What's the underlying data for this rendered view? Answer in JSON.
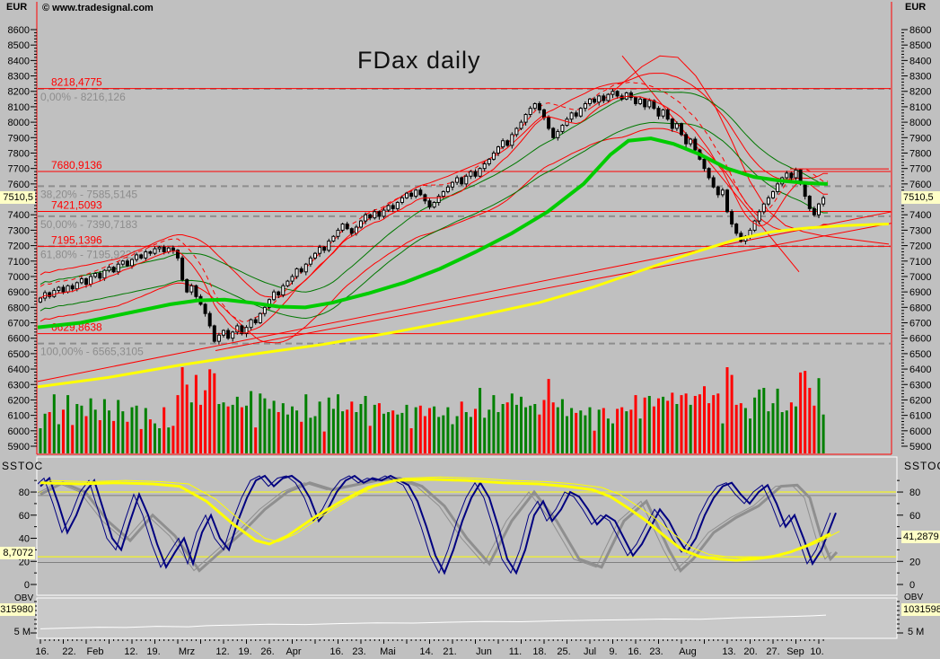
{
  "app": {
    "watermark": "© www.tradesignal.com",
    "title": "FDax daily"
  },
  "price_axis": {
    "unit": "EUR",
    "tick_min": 5900,
    "tick_max": 8600,
    "tick_step": 100,
    "current_price_box": "7510,5"
  },
  "levels": [
    {
      "label": "8218,4775",
      "value": 8218.4775
    },
    {
      "label": "7680,9136",
      "value": 7680.9136
    },
    {
      "label": "7421,5093",
      "value": 7421.5093
    },
    {
      "label": "7195,1396",
      "value": 7195.1396
    },
    {
      "label": "6629,8638",
      "value": 6629.8638
    }
  ],
  "fib_levels": [
    {
      "label": "0,00% - 8216,126",
      "value": 8216.126
    },
    {
      "label": "38,20% - 7585,5145",
      "value": 7585.5145
    },
    {
      "label": "50,00% - 7390,7183",
      "value": 7390.7183
    },
    {
      "label": "61,80% - 7195,9221",
      "value": 7195.9221
    },
    {
      "label": "100,00% - 6565,3105",
      "value": 6565.3105
    }
  ],
  "dates": [
    {
      "label": "16.",
      "x": 47
    },
    {
      "label": "22.",
      "x": 77
    },
    {
      "label": "Feb",
      "x": 106
    },
    {
      "label": "12.",
      "x": 146
    },
    {
      "label": "19.",
      "x": 171
    },
    {
      "label": "Mrz",
      "x": 208
    },
    {
      "label": "12.",
      "x": 248
    },
    {
      "label": "19.",
      "x": 273
    },
    {
      "label": "26.",
      "x": 298
    },
    {
      "label": "Apr",
      "x": 327
    },
    {
      "label": "16.",
      "x": 375
    },
    {
      "label": "23.",
      "x": 400
    },
    {
      "label": "Mai",
      "x": 432
    },
    {
      "label": "14.",
      "x": 475
    },
    {
      "label": "21.",
      "x": 501
    },
    {
      "label": "Jun",
      "x": 539
    },
    {
      "label": "11.",
      "x": 574
    },
    {
      "label": "18.",
      "x": 601
    },
    {
      "label": "25.",
      "x": 628
    },
    {
      "label": "Jul",
      "x": 657
    },
    {
      "label": "9.",
      "x": 683
    },
    {
      "label": "16.",
      "x": 707
    },
    {
      "label": "23.",
      "x": 731
    },
    {
      "label": "Aug",
      "x": 766
    },
    {
      "label": "13.",
      "x": 812
    },
    {
      "label": "20.",
      "x": 836
    },
    {
      "label": "27.",
      "x": 861
    },
    {
      "label": "Sep",
      "x": 886
    },
    {
      "label": "10.",
      "x": 910
    }
  ],
  "sstoc": {
    "title": "SSTOC",
    "ticks": [
      80,
      60,
      40,
      20,
      0
    ],
    "left_box": "8,7072",
    "right_box": "41,2879",
    "ref_yellow": [
      80,
      24
    ],
    "ref_gray": [
      77,
      19
    ]
  },
  "obv": {
    "title": "OBV",
    "left_box": "315980",
    "right_box": "1031598",
    "tick_label": "5 M",
    "line": [
      [
        45,
        5.9
      ],
      [
        80,
        6.1
      ],
      [
        110,
        6.25
      ],
      [
        140,
        6.2
      ],
      [
        175,
        6.45
      ],
      [
        210,
        6.35
      ],
      [
        230,
        6.6
      ],
      [
        265,
        6.75
      ],
      [
        300,
        6.9
      ],
      [
        340,
        6.85
      ],
      [
        380,
        7.05
      ],
      [
        420,
        7.2
      ],
      [
        460,
        7.15
      ],
      [
        500,
        7.35
      ],
      [
        540,
        7.5
      ],
      [
        580,
        7.45
      ],
      [
        620,
        7.65
      ],
      [
        660,
        7.8
      ],
      [
        700,
        7.9
      ],
      [
        740,
        8.05
      ],
      [
        780,
        8.0
      ],
      [
        820,
        8.3
      ],
      [
        850,
        8.45
      ],
      [
        880,
        8.6
      ],
      [
        905,
        8.75
      ],
      [
        920,
        8.9
      ]
    ]
  },
  "colors": {
    "background": "#c0c0c0",
    "pane_border_red": "#ff0000",
    "level_red": "#ff0000",
    "fib_gray": "#8d8d8d",
    "ma_green": "#00cc00",
    "ma_yellow": "#ffff00",
    "band_darkgreen": "#007800",
    "volume_up": "#008000",
    "volume_down": "#ff0000",
    "stoch_navy": "#000080",
    "stoch_gray": "#8f8f8f",
    "obv_white": "#ffffff",
    "value_box": "#ffffc6"
  },
  "chart_data": {
    "type": "candlestick",
    "symbol": "FDax",
    "interval": "daily",
    "ylim": [
      5900,
      8600
    ],
    "x_range_days": 172,
    "closes": [
      6860,
      6895,
      6870,
      6910,
      6930,
      6900,
      6940,
      6920,
      6960,
      6985,
      6950,
      7000,
      7020,
      6990,
      7040,
      7060,
      7030,
      7080,
      7100,
      7070,
      7110,
      7140,
      7120,
      7160,
      7150,
      7180,
      7190,
      7160,
      7185,
      7170,
      7120,
      6980,
      6900,
      6940,
      6870,
      6820,
      6760,
      6680,
      6580,
      6620,
      6650,
      6600,
      6640,
      6680,
      6630,
      6670,
      6720,
      6700,
      6760,
      6800,
      6850,
      6900,
      6880,
      6940,
      6970,
      7000,
      7050,
      7030,
      7080,
      7120,
      7150,
      7190,
      7170,
      7230,
      7260,
      7300,
      7340,
      7310,
      7280,
      7320,
      7360,
      7400,
      7380,
      7420,
      7390,
      7430,
      7460,
      7440,
      7480,
      7510,
      7540,
      7520,
      7560,
      7530,
      7490,
      7450,
      7480,
      7520,
      7550,
      7580,
      7610,
      7640,
      7600,
      7650,
      7680,
      7650,
      7700,
      7730,
      7760,
      7800,
      7840,
      7880,
      7850,
      7920,
      7960,
      8000,
      8050,
      8090,
      8120,
      8080,
      8030,
      7960,
      7900,
      7940,
      7980,
      8020,
      8060,
      8040,
      8090,
      8120,
      8150,
      8130,
      8170,
      8140,
      8180,
      8200,
      8170,
      8150,
      8190,
      8160,
      8120,
      8150,
      8100,
      8140,
      8090,
      8040,
      8080,
      8020,
      7960,
      7990,
      7920,
      7860,
      7890,
      7820,
      7760,
      7700,
      7640,
      7580,
      7530,
      7560,
      7420,
      7340,
      7280,
      7230,
      7260,
      7300,
      7360,
      7420,
      7470,
      7510,
      7550,
      7600,
      7640,
      7670,
      7640,
      7690,
      7600,
      7520,
      7440,
      7400,
      7470,
      7510
    ],
    "overlays": {
      "green_ma": [
        [
          42,
          6670
        ],
        [
          90,
          6700
        ],
        [
          140,
          6760
        ],
        [
          190,
          6820
        ],
        [
          220,
          6845
        ],
        [
          250,
          6850
        ],
        [
          280,
          6830
        ],
        [
          310,
          6805
        ],
        [
          340,
          6800
        ],
        [
          370,
          6830
        ],
        [
          410,
          6890
        ],
        [
          450,
          6960
        ],
        [
          490,
          7050
        ],
        [
          530,
          7160
        ],
        [
          570,
          7280
        ],
        [
          610,
          7420
        ],
        [
          650,
          7600
        ],
        [
          680,
          7790
        ],
        [
          700,
          7880
        ],
        [
          725,
          7895
        ],
        [
          750,
          7860
        ],
        [
          780,
          7790
        ],
        [
          810,
          7700
        ],
        [
          840,
          7645
        ],
        [
          870,
          7620
        ],
        [
          900,
          7605
        ],
        [
          922,
          7600
        ]
      ],
      "yellow_ma": [
        [
          42,
          6285
        ],
        [
          120,
          6345
        ],
        [
          200,
          6425
        ],
        [
          280,
          6495
        ],
        [
          360,
          6560
        ],
        [
          440,
          6640
        ],
        [
          520,
          6730
        ],
        [
          600,
          6830
        ],
        [
          660,
          6930
        ],
        [
          720,
          7050
        ],
        [
          770,
          7150
        ],
        [
          820,
          7240
        ],
        [
          860,
          7290
        ],
        [
          900,
          7315
        ],
        [
          940,
          7330
        ],
        [
          990,
          7340
        ]
      ],
      "trendline1": [
        [
          42,
          6320
        ],
        [
          1002,
          7430
        ]
      ],
      "trendline2": [
        [
          240,
          6520
        ],
        [
          1002,
          7355
        ]
      ],
      "downline": [
        [
          693,
          8430
        ],
        [
          890,
          7030
        ]
      ],
      "spike": [
        [
          655,
          8080
        ],
        [
          675,
          8160
        ],
        [
          695,
          8260
        ],
        [
          715,
          8360
        ],
        [
          735,
          8430
        ],
        [
          755,
          8420
        ],
        [
          775,
          8300
        ],
        [
          795,
          8120
        ],
        [
          815,
          7880
        ],
        [
          835,
          7620
        ],
        [
          855,
          7430
        ],
        [
          875,
          7330
        ],
        [
          895,
          7290
        ],
        [
          915,
          7265
        ],
        [
          935,
          7250
        ],
        [
          990,
          7210
        ]
      ],
      "red_flat": [
        [
          880,
          7697
        ],
        [
          990,
          7697
        ]
      ]
    },
    "sstoc_lines": {
      "fast_navy": [
        [
          45,
          85
        ],
        [
          55,
          92
        ],
        [
          65,
          70
        ],
        [
          75,
          45
        ],
        [
          85,
          60
        ],
        [
          95,
          80
        ],
        [
          105,
          90
        ],
        [
          115,
          65
        ],
        [
          125,
          40
        ],
        [
          135,
          30
        ],
        [
          145,
          55
        ],
        [
          155,
          78
        ],
        [
          165,
          60
        ],
        [
          175,
          35
        ],
        [
          185,
          15
        ],
        [
          195,
          28
        ],
        [
          205,
          40
        ],
        [
          215,
          18
        ],
        [
          225,
          45
        ],
        [
          235,
          60
        ],
        [
          245,
          40
        ],
        [
          255,
          30
        ],
        [
          265,
          55
        ],
        [
          275,
          75
        ],
        [
          285,
          90
        ],
        [
          295,
          94
        ],
        [
          305,
          85
        ],
        [
          315,
          92
        ],
        [
          325,
          94
        ],
        [
          335,
          88
        ],
        [
          345,
          75
        ],
        [
          355,
          55
        ],
        [
          365,
          65
        ],
        [
          375,
          80
        ],
        [
          385,
          90
        ],
        [
          395,
          94
        ],
        [
          405,
          88
        ],
        [
          415,
          92
        ],
        [
          425,
          90
        ],
        [
          435,
          94
        ],
        [
          445,
          90
        ],
        [
          455,
          86
        ],
        [
          465,
          72
        ],
        [
          475,
          50
        ],
        [
          485,
          25
        ],
        [
          495,
          10
        ],
        [
          505,
          30
        ],
        [
          515,
          55
        ],
        [
          525,
          75
        ],
        [
          535,
          88
        ],
        [
          545,
          75
        ],
        [
          555,
          50
        ],
        [
          565,
          22
        ],
        [
          575,
          10
        ],
        [
          585,
          30
        ],
        [
          595,
          60
        ],
        [
          605,
          72
        ],
        [
          615,
          55
        ],
        [
          625,
          65
        ],
        [
          635,
          80
        ],
        [
          645,
          76
        ],
        [
          655,
          65
        ],
        [
          665,
          52
        ],
        [
          675,
          60
        ],
        [
          685,
          55
        ],
        [
          695,
          40
        ],
        [
          705,
          25
        ],
        [
          715,
          35
        ],
        [
          725,
          50
        ],
        [
          735,
          65
        ],
        [
          745,
          55
        ],
        [
          755,
          40
        ],
        [
          765,
          28
        ],
        [
          775,
          40
        ],
        [
          785,
          60
        ],
        [
          795,
          75
        ],
        [
          805,
          85
        ],
        [
          815,
          88
        ],
        [
          825,
          78
        ],
        [
          835,
          70
        ],
        [
          845,
          80
        ],
        [
          855,
          86
        ],
        [
          865,
          70
        ],
        [
          875,
          50
        ],
        [
          885,
          60
        ],
        [
          895,
          40
        ],
        [
          905,
          18
        ],
        [
          915,
          30
        ],
        [
          924,
          48
        ],
        [
          931,
          62
        ]
      ],
      "slow_gray": [
        [
          45,
          78
        ],
        [
          70,
          88
        ],
        [
          95,
          80
        ],
        [
          120,
          55
        ],
        [
          145,
          38
        ],
        [
          170,
          60
        ],
        [
          195,
          42
        ],
        [
          222,
          12
        ],
        [
          245,
          28
        ],
        [
          270,
          45
        ],
        [
          295,
          65
        ],
        [
          320,
          80
        ],
        [
          345,
          88
        ],
        [
          370,
          82
        ],
        [
          395,
          86
        ],
        [
          420,
          90
        ],
        [
          445,
          92
        ],
        [
          470,
          85
        ],
        [
          495,
          68
        ],
        [
          520,
          40
        ],
        [
          545,
          18
        ],
        [
          570,
          55
        ],
        [
          595,
          80
        ],
        [
          620,
          55
        ],
        [
          645,
          22
        ],
        [
          670,
          15
        ],
        [
          695,
          55
        ],
        [
          720,
          72
        ],
        [
          745,
          30
        ],
        [
          758,
          12
        ],
        [
          772,
          22
        ],
        [
          795,
          45
        ],
        [
          820,
          58
        ],
        [
          845,
          68
        ],
        [
          870,
          85
        ],
        [
          888,
          86
        ],
        [
          902,
          75
        ],
        [
          915,
          40
        ],
        [
          925,
          22
        ],
        [
          932,
          28
        ]
      ],
      "signal_yellow": [
        [
          45,
          88
        ],
        [
          90,
          87
        ],
        [
          130,
          88
        ],
        [
          170,
          87
        ],
        [
          200,
          85
        ],
        [
          230,
          72
        ],
        [
          260,
          52
        ],
        [
          285,
          38
        ],
        [
          300,
          35
        ],
        [
          320,
          42
        ],
        [
          350,
          58
        ],
        [
          380,
          72
        ],
        [
          410,
          84
        ],
        [
          440,
          90
        ],
        [
          480,
          91
        ],
        [
          520,
          90
        ],
        [
          560,
          88
        ],
        [
          600,
          87
        ],
        [
          630,
          85
        ],
        [
          660,
          82
        ],
        [
          680,
          76
        ],
        [
          700,
          66
        ],
        [
          720,
          55
        ],
        [
          740,
          42
        ],
        [
          760,
          30
        ],
        [
          780,
          24
        ],
        [
          800,
          22
        ],
        [
          820,
          21
        ],
        [
          840,
          22
        ],
        [
          860,
          24
        ],
        [
          880,
          28
        ],
        [
          900,
          34
        ],
        [
          915,
          40
        ],
        [
          925,
          44
        ]
      ]
    }
  }
}
